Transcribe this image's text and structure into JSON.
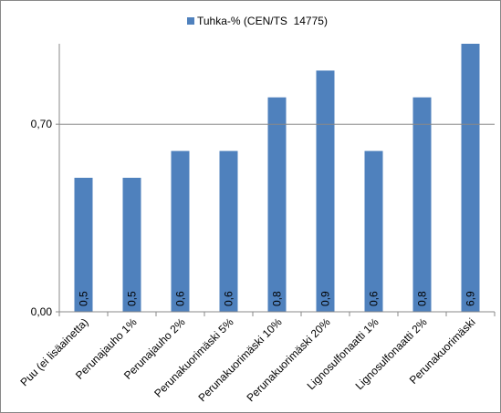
{
  "chart_data": {
    "type": "bar",
    "categories": [
      "Puu (ei lisäainetta)",
      "Perunajauho 1%",
      "Perunajauho 2%",
      "Perunakuorimäski 5%",
      "Perunakuorimäski 10%",
      "Perunakuorimäski 20%",
      "Lignosulfonaatti 1%",
      "Lignosulfonaatti 2%",
      "Perunakuorimäski"
    ],
    "series": [
      {
        "name": "Tuhka-% (CEN/TS  14775)",
        "color": "#4f81bd",
        "values": [
          0.5,
          0.5,
          0.6,
          0.6,
          0.8,
          0.9,
          0.6,
          0.8,
          6.9
        ],
        "value_labels": [
          "0,5",
          "0,5",
          "0,6",
          "0,6",
          "0,8",
          "0,9",
          "0,6",
          "0,8",
          "6,9"
        ]
      }
    ],
    "ylim": [
      0,
      1.0
    ],
    "yticks": [
      {
        "value": 0,
        "label": "0,00"
      },
      {
        "value": 0.7,
        "label": "0,70"
      }
    ],
    "grid": true,
    "legend": "top"
  }
}
